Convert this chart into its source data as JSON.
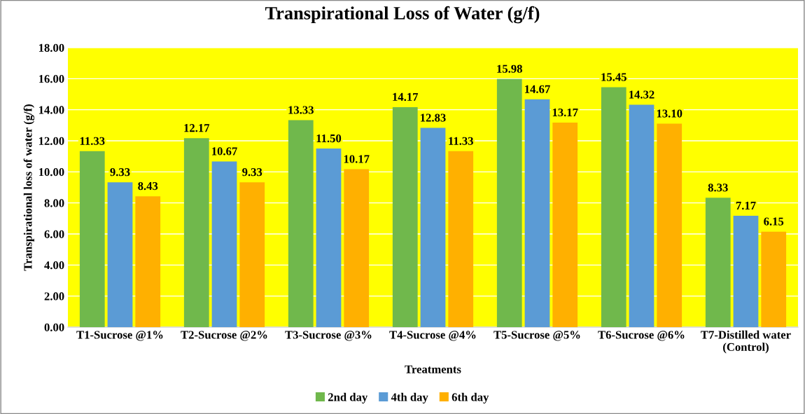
{
  "chart_data": {
    "type": "bar",
    "title": "Transpirational Loss of Water (g/f)",
    "xlabel": "Treatments",
    "ylabel": "Transpirational loss of water (g/f)",
    "categories": [
      "T1-Sucrose @1%",
      "T2-Sucrose @2%",
      "T3-Sucrose @3%",
      "T4-Sucrose @4%",
      "T5-Sucrose @5%",
      "T6-Sucrose @6%",
      "T7-Distilled water\n(Control)"
    ],
    "series": [
      {
        "name": "2nd day",
        "color": "#70b84c",
        "values": [
          11.33,
          12.17,
          13.33,
          14.17,
          15.98,
          15.45,
          8.33
        ],
        "value_labels": [
          "11.33",
          "12.17",
          "13.33",
          "14.17",
          "15.98",
          "15.45",
          "8.33"
        ]
      },
      {
        "name": "4th day",
        "color": "#5b9bd5",
        "values": [
          9.33,
          10.67,
          11.5,
          12.83,
          14.67,
          14.32,
          7.17
        ],
        "value_labels": [
          "9.33",
          "10.67",
          "11.50",
          "12.83",
          "14.67",
          "14.32",
          "7.17"
        ]
      },
      {
        "name": "6th day",
        "color": "#ffb000",
        "values": [
          8.43,
          9.33,
          10.17,
          11.33,
          13.17,
          13.1,
          6.15
        ],
        "value_labels": [
          "8.43",
          "9.33",
          "10.17",
          "11.33",
          "13.17",
          "13.10",
          "6.15"
        ]
      }
    ],
    "ylim": [
      0,
      18
    ],
    "yticks": [
      {
        "value": 0,
        "label": "0.00"
      },
      {
        "value": 2,
        "label": "2.00"
      },
      {
        "value": 4,
        "label": "4.00"
      },
      {
        "value": 6,
        "label": "6.00"
      },
      {
        "value": 8,
        "label": "8.00"
      },
      {
        "value": 10,
        "label": "10.00"
      },
      {
        "value": 12,
        "label": "12.00"
      },
      {
        "value": 14,
        "label": "14.00"
      },
      {
        "value": 16,
        "label": "16.00"
      },
      {
        "value": 18,
        "label": "18.00"
      }
    ],
    "grid": "y",
    "legend": "bottom"
  }
}
